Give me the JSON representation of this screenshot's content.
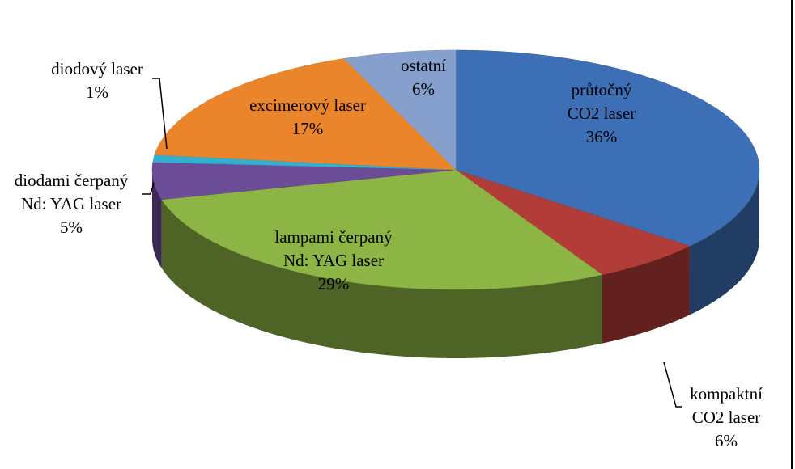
{
  "chart_data": {
    "type": "pie3d",
    "categories": [
      "průtočný\nCO2 laser",
      "kompaktní\nCO2 laser",
      "lampami čerpaný\nNd: YAG laser",
      "diodami čerpaný\nNd: YAG laser",
      "diodový laser",
      "excimerový laser",
      "ostatní"
    ],
    "values": [
      36,
      6,
      29,
      5,
      1,
      17,
      6
    ],
    "value_labels": [
      "36%",
      "6%",
      "29%",
      "5%",
      "1%",
      "17%",
      "6%"
    ],
    "colors": [
      "#3d6fb6",
      "#b23c37",
      "#8db545",
      "#6b4c96",
      "#34afcf",
      "#ea852c",
      "#86a0cd"
    ]
  }
}
